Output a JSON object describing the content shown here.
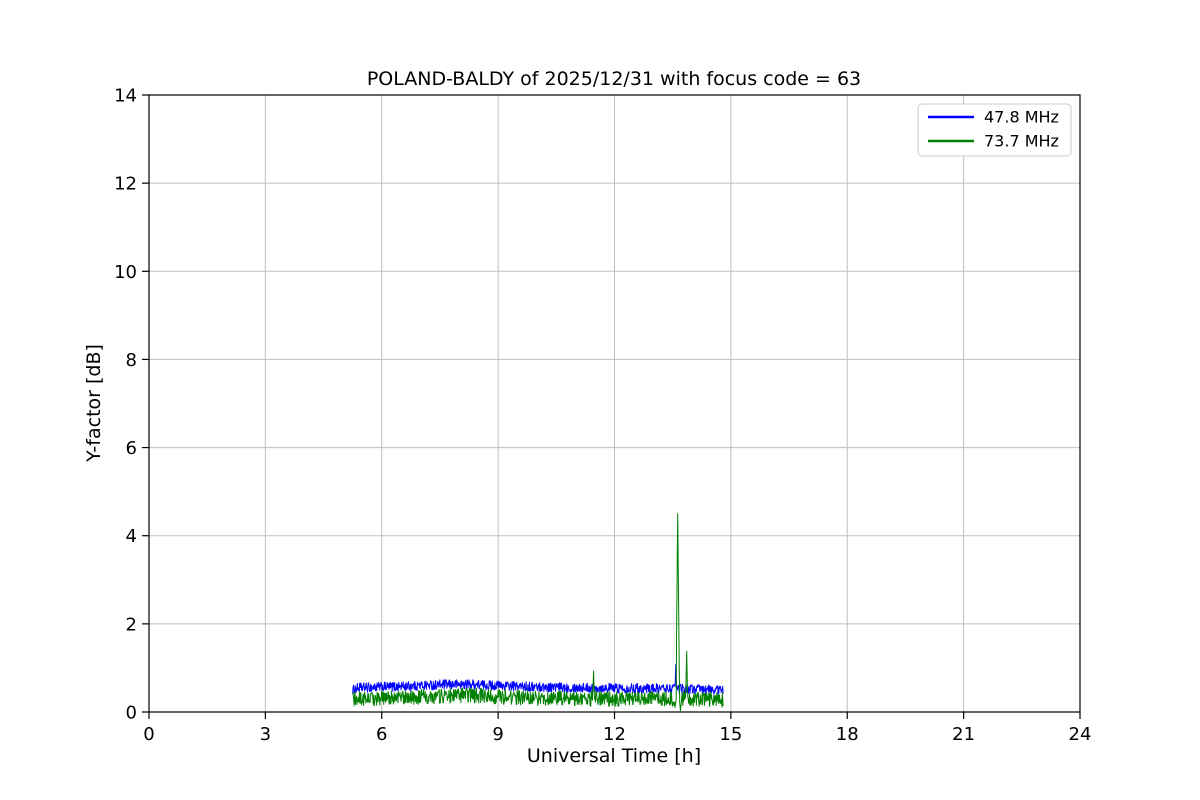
{
  "chart_data": {
    "type": "line",
    "title": "POLAND-BALDY of 2025/12/31 with focus code = 63",
    "xlabel": "Universal Time [h]",
    "ylabel": "Y-factor [dB]",
    "xlim": [
      0,
      24
    ],
    "ylim": [
      0,
      14
    ],
    "xticks": [
      0,
      3,
      6,
      9,
      12,
      15,
      18,
      21,
      24
    ],
    "yticks": [
      0,
      2,
      4,
      6,
      8,
      10,
      12,
      14
    ],
    "grid": true,
    "grid_color": "#bfbfbf",
    "background_color": "#ffffff",
    "legend": {
      "position": "upper right"
    },
    "series": [
      {
        "name": "47.8 MHz",
        "color": "#0000ff",
        "time_range": [
          5.25,
          14.8
        ],
        "noise_amplitude": 0.11,
        "baseline": [
          [
            5.25,
            0.5
          ],
          [
            5.4,
            0.55
          ],
          [
            6.5,
            0.58
          ],
          [
            7.5,
            0.62
          ],
          [
            8.3,
            0.63
          ],
          [
            9.0,
            0.6
          ],
          [
            9.5,
            0.58
          ],
          [
            10.5,
            0.56
          ],
          [
            11.5,
            0.55
          ],
          [
            12.5,
            0.54
          ],
          [
            13.5,
            0.53
          ],
          [
            14.0,
            0.52
          ],
          [
            14.8,
            0.5
          ]
        ],
        "spikes": [
          [
            13.58,
            1.08
          ]
        ],
        "dips": []
      },
      {
        "name": "73.7 MHz",
        "color": "#008000",
        "time_range": [
          5.25,
          14.8
        ],
        "noise_amplitude": 0.17,
        "baseline": [
          [
            5.25,
            0.28
          ],
          [
            5.4,
            0.3
          ],
          [
            6.5,
            0.33
          ],
          [
            7.5,
            0.36
          ],
          [
            8.3,
            0.38
          ],
          [
            9.0,
            0.35
          ],
          [
            9.5,
            0.33
          ],
          [
            10.5,
            0.31
          ],
          [
            11.5,
            0.3
          ],
          [
            12.5,
            0.29
          ],
          [
            13.5,
            0.3
          ],
          [
            14.0,
            0.3
          ],
          [
            14.8,
            0.28
          ]
        ],
        "spikes": [
          [
            11.46,
            0.93
          ],
          [
            13.63,
            4.5
          ],
          [
            13.86,
            1.38
          ]
        ],
        "dips": [
          [
            13.56,
            0.1
          ],
          [
            13.7,
            0.03
          ]
        ]
      }
    ]
  }
}
